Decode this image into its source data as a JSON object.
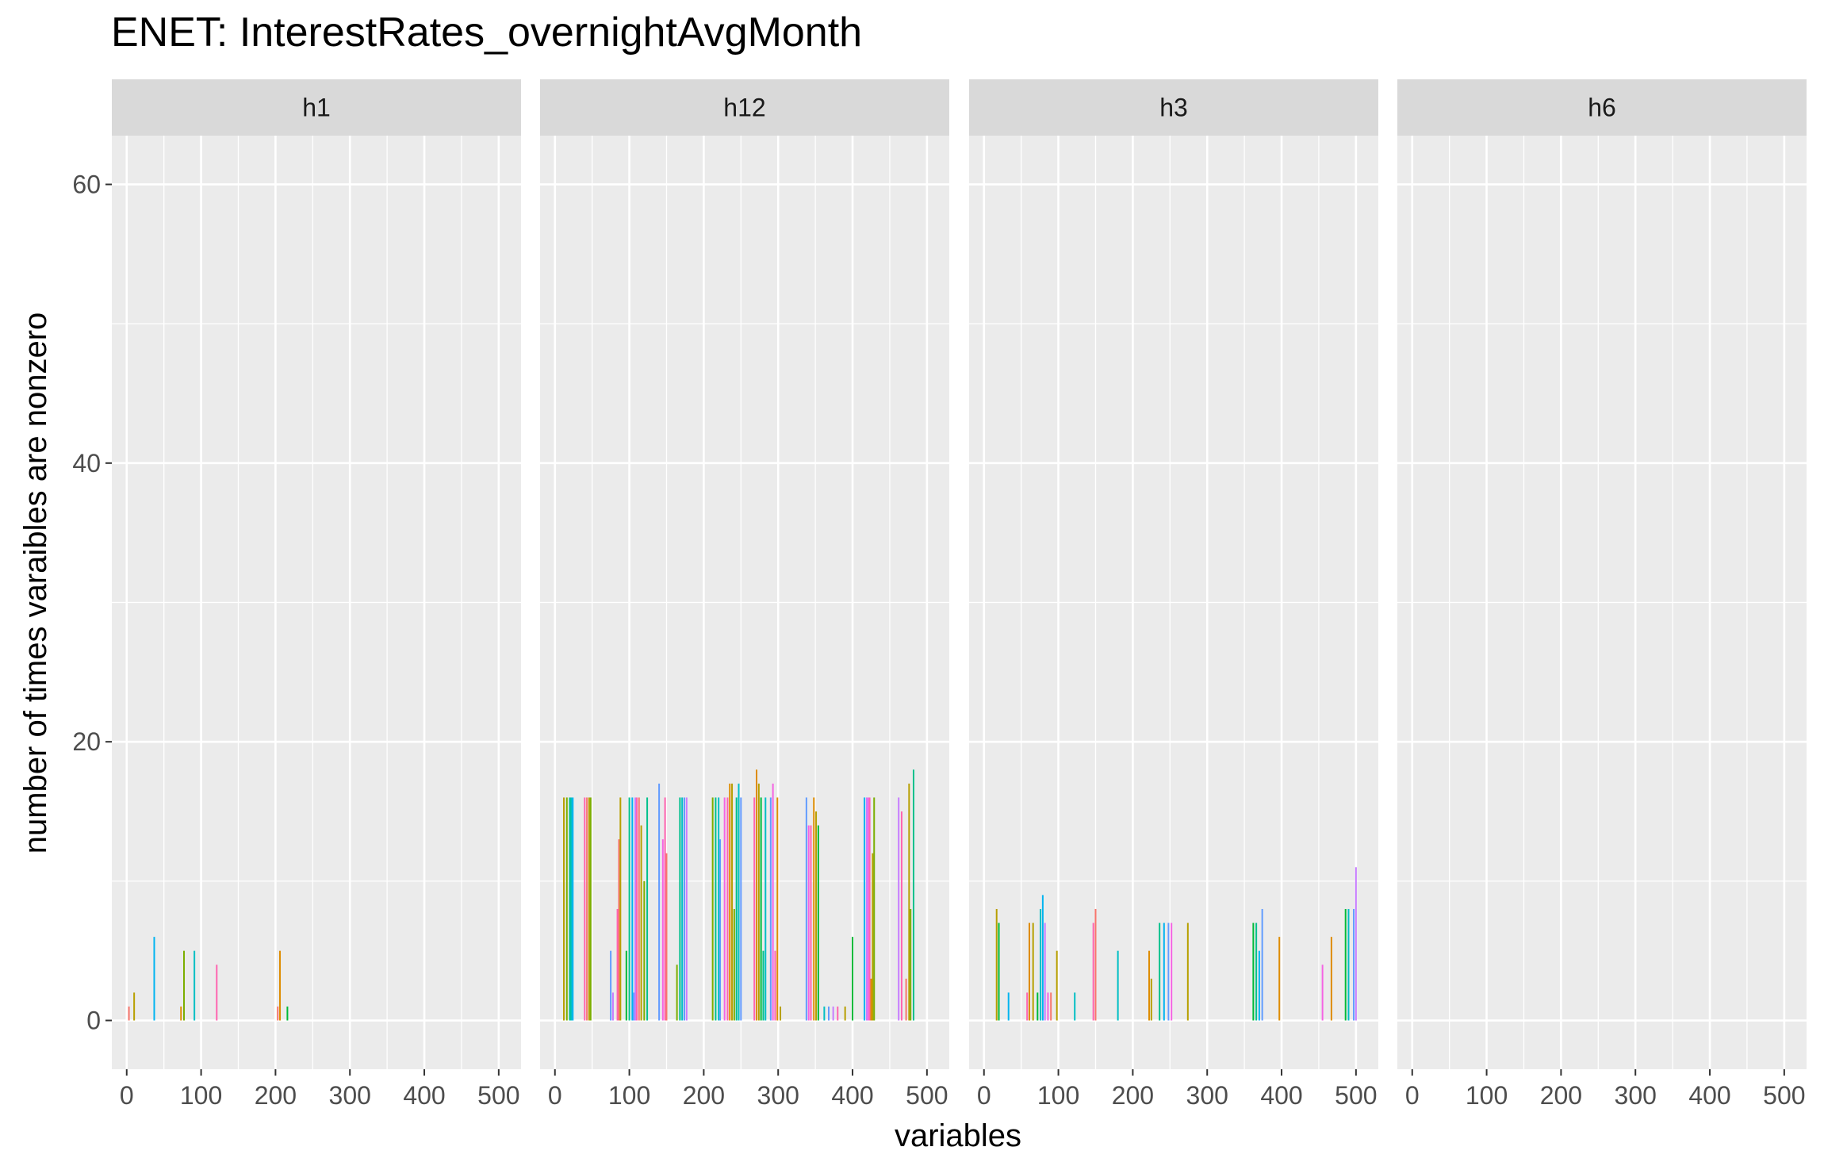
{
  "chart_data": {
    "type": "bar",
    "title": "ENET: InterestRates_overnightAvgMonth",
    "xlabel": "variables",
    "ylabel": "number of times varaibles are nonzero",
    "xlim": [
      -20,
      530
    ],
    "ylim": [
      -3.5,
      63.5
    ],
    "x_ticks": [
      0,
      100,
      200,
      300,
      400,
      500
    ],
    "y_ticks": [
      0,
      20,
      40,
      60
    ],
    "grid": true,
    "legend": "none",
    "facet_strip_color": "#d9d9d9",
    "panel_color": "#ebebeb",
    "palette": [
      "#F8766D",
      "#DE8C00",
      "#B79F00",
      "#7CAE00",
      "#00BA38",
      "#00C08B",
      "#00BFC4",
      "#00B4F0",
      "#619CFF",
      "#C77CFF",
      "#F564E3",
      "#FF64B0"
    ],
    "facets": [
      {
        "label": "h1",
        "bars": [
          {
            "x": 3,
            "y": 1
          },
          {
            "x": 10,
            "y": 2
          },
          {
            "x": 37,
            "y": 6
          },
          {
            "x": 73,
            "y": 1
          },
          {
            "x": 77,
            "y": 5
          },
          {
            "x": 91,
            "y": 5
          },
          {
            "x": 121,
            "y": 4
          },
          {
            "x": 203,
            "y": 1
          },
          {
            "x": 206,
            "y": 5
          },
          {
            "x": 216,
            "y": 1
          }
        ]
      },
      {
        "label": "h12",
        "bars": [
          {
            "x": 12,
            "y": 16
          },
          {
            "x": 16,
            "y": 16
          },
          {
            "x": 20,
            "y": 16
          },
          {
            "x": 22,
            "y": 16
          },
          {
            "x": 24,
            "y": 16
          },
          {
            "x": 40,
            "y": 16
          },
          {
            "x": 43,
            "y": 16
          },
          {
            "x": 46,
            "y": 16
          },
          {
            "x": 48,
            "y": 16
          },
          {
            "x": 75,
            "y": 5
          },
          {
            "x": 78,
            "y": 2
          },
          {
            "x": 84,
            "y": 8
          },
          {
            "x": 86,
            "y": 13
          },
          {
            "x": 88,
            "y": 16
          },
          {
            "x": 96,
            "y": 5
          },
          {
            "x": 100,
            "y": 16
          },
          {
            "x": 104,
            "y": 16
          },
          {
            "x": 106,
            "y": 2
          },
          {
            "x": 108,
            "y": 16
          },
          {
            "x": 110,
            "y": 16
          },
          {
            "x": 113,
            "y": 16
          },
          {
            "x": 116,
            "y": 14
          },
          {
            "x": 120,
            "y": 10
          },
          {
            "x": 124,
            "y": 16
          },
          {
            "x": 140,
            "y": 17
          },
          {
            "x": 145,
            "y": 13
          },
          {
            "x": 148,
            "y": 16
          },
          {
            "x": 150,
            "y": 12
          },
          {
            "x": 164,
            "y": 4
          },
          {
            "x": 168,
            "y": 16
          },
          {
            "x": 171,
            "y": 16
          },
          {
            "x": 174,
            "y": 16
          },
          {
            "x": 177,
            "y": 16
          },
          {
            "x": 212,
            "y": 16
          },
          {
            "x": 216,
            "y": 16
          },
          {
            "x": 220,
            "y": 16
          },
          {
            "x": 222,
            "y": 13
          },
          {
            "x": 228,
            "y": 16
          },
          {
            "x": 232,
            "y": 16
          },
          {
            "x": 235,
            "y": 17
          },
          {
            "x": 238,
            "y": 17
          },
          {
            "x": 241,
            "y": 8
          },
          {
            "x": 244,
            "y": 16
          },
          {
            "x": 247,
            "y": 17
          },
          {
            "x": 250,
            "y": 16
          },
          {
            "x": 268,
            "y": 16
          },
          {
            "x": 271,
            "y": 18
          },
          {
            "x": 274,
            "y": 17
          },
          {
            "x": 277,
            "y": 16
          },
          {
            "x": 280,
            "y": 5
          },
          {
            "x": 283,
            "y": 16
          },
          {
            "x": 290,
            "y": 16
          },
          {
            "x": 293,
            "y": 17
          },
          {
            "x": 296,
            "y": 5
          },
          {
            "x": 299,
            "y": 16
          },
          {
            "x": 303,
            "y": 1
          },
          {
            "x": 338,
            "y": 16
          },
          {
            "x": 341,
            "y": 14
          },
          {
            "x": 344,
            "y": 14
          },
          {
            "x": 348,
            "y": 16
          },
          {
            "x": 351,
            "y": 15
          },
          {
            "x": 354,
            "y": 14
          },
          {
            "x": 362,
            "y": 1
          },
          {
            "x": 368,
            "y": 1
          },
          {
            "x": 374,
            "y": 1
          },
          {
            "x": 380,
            "y": 1
          },
          {
            "x": 390,
            "y": 1
          },
          {
            "x": 400,
            "y": 6
          },
          {
            "x": 416,
            "y": 16
          },
          {
            "x": 419,
            "y": 16
          },
          {
            "x": 421,
            "y": 16
          },
          {
            "x": 423,
            "y": 16
          },
          {
            "x": 425,
            "y": 3
          },
          {
            "x": 427,
            "y": 12
          },
          {
            "x": 429,
            "y": 16
          },
          {
            "x": 462,
            "y": 16
          },
          {
            "x": 466,
            "y": 15
          },
          {
            "x": 472,
            "y": 3
          },
          {
            "x": 476,
            "y": 17
          },
          {
            "x": 478,
            "y": 8
          },
          {
            "x": 482,
            "y": 18
          }
        ]
      },
      {
        "label": "h3",
        "bars": [
          {
            "x": 17,
            "y": 8
          },
          {
            "x": 20,
            "y": 7
          },
          {
            "x": 33,
            "y": 2
          },
          {
            "x": 58,
            "y": 2
          },
          {
            "x": 61,
            "y": 7
          },
          {
            "x": 66,
            "y": 7
          },
          {
            "x": 72,
            "y": 2
          },
          {
            "x": 76,
            "y": 8
          },
          {
            "x": 79,
            "y": 9
          },
          {
            "x": 82,
            "y": 7
          },
          {
            "x": 86,
            "y": 2
          },
          {
            "x": 90,
            "y": 2
          },
          {
            "x": 98,
            "y": 5
          },
          {
            "x": 122,
            "y": 2
          },
          {
            "x": 147,
            "y": 7
          },
          {
            "x": 150,
            "y": 8
          },
          {
            "x": 180,
            "y": 5
          },
          {
            "x": 222,
            "y": 5
          },
          {
            "x": 225,
            "y": 3
          },
          {
            "x": 236,
            "y": 7
          },
          {
            "x": 242,
            "y": 7
          },
          {
            "x": 248,
            "y": 7
          },
          {
            "x": 252,
            "y": 7
          },
          {
            "x": 274,
            "y": 7
          },
          {
            "x": 362,
            "y": 7
          },
          {
            "x": 366,
            "y": 7
          },
          {
            "x": 370,
            "y": 5
          },
          {
            "x": 374,
            "y": 8
          },
          {
            "x": 397,
            "y": 6
          },
          {
            "x": 455,
            "y": 4
          },
          {
            "x": 467,
            "y": 6
          },
          {
            "x": 486,
            "y": 8
          },
          {
            "x": 490,
            "y": 8
          },
          {
            "x": 497,
            "y": 8
          },
          {
            "x": 500,
            "y": 11
          }
        ]
      },
      {
        "label": "h6",
        "bars": []
      }
    ]
  }
}
